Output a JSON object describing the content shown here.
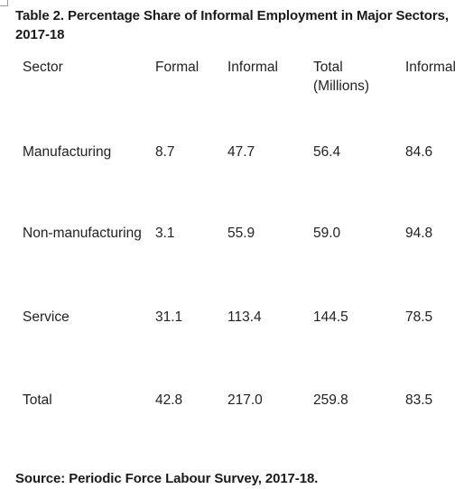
{
  "table": {
    "title": "Table 2. Percentage Share of Informal Employment in Major Sectors, 2017-18",
    "headers": [
      "Sector",
      "Formal",
      "Informal",
      "Total (Millions)",
      "Informal"
    ],
    "rows": [
      [
        "Manufacturing",
        "8.7",
        "47.7",
        "56.4",
        "84.6"
      ],
      [
        "Non-manufacturing",
        "3.1",
        "55.9",
        "59.0",
        "94.8"
      ],
      [
        "Service",
        "31.1",
        "113.4",
        "144.5",
        "78.5"
      ],
      [
        "Total",
        "42.8",
        "217.0",
        "259.8",
        "83.5"
      ]
    ],
    "source": "Source: Periodic Force Labour Survey, 2017-18."
  }
}
